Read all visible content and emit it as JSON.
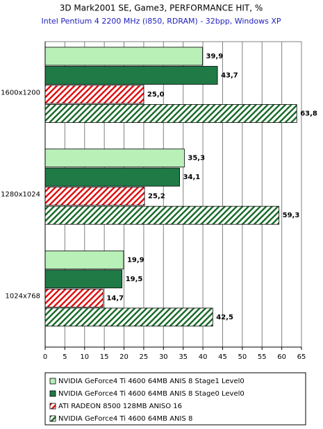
{
  "chart_data": {
    "type": "hbar",
    "title": "3D Mark2001 SE, Game3, PERFORMANCE HIT, %",
    "subtitle": "Intel Pentium 4 2200 MHz (i850, RDRAM) - 32bpp, Windows XP",
    "categories": [
      "1600x1200",
      "1280x1024",
      "1024x768"
    ],
    "series": [
      {
        "name": "NVIDIA GeForce4 Ti 4600 64MB ANIS 8 Stage1 Level0",
        "color": "#b8f0b8",
        "hatch": false,
        "values": [
          39.9,
          35.3,
          19.9
        ],
        "value_labels": [
          "39,9",
          "35,3",
          "19,9"
        ]
      },
      {
        "name": "NVIDIA GeForce4 Ti 4600 64MB ANIS 8 Stage0 Level0",
        "color": "#1f7a46",
        "hatch": false,
        "values": [
          43.7,
          34.1,
          19.5
        ],
        "value_labels": [
          "43,7",
          "34,1",
          "19,5"
        ]
      },
      {
        "name": "ATI RADEON 8500 128MB ANISO 16",
        "color": "#e01010",
        "hatch": true,
        "values": [
          25.0,
          25.2,
          14.7
        ],
        "value_labels": [
          "25,0",
          "25,2",
          "14,7"
        ]
      },
      {
        "name": "NVIDIA GeForce4 Ti 4600 64MB ANIS 8",
        "color": "#1a6b2a",
        "hatch": true,
        "values": [
          63.8,
          59.3,
          42.5
        ],
        "value_labels": [
          "63,8",
          "59,3",
          "42,5"
        ]
      }
    ],
    "xlim": [
      0,
      65
    ],
    "xticks": [
      0,
      5,
      10,
      15,
      20,
      25,
      30,
      35,
      40,
      45,
      50,
      55,
      60,
      65
    ],
    "grid": true
  }
}
